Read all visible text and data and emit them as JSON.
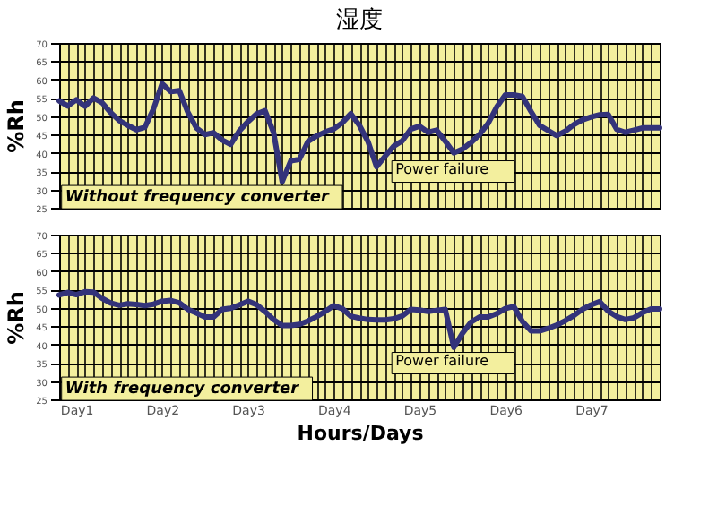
{
  "chart_data": [
    {
      "type": "line",
      "title": "湿度",
      "ylabel": "%Rh",
      "tick_labels": "y",
      "grid": true,
      "line_style": "solid",
      "marker": "none",
      "categories": [
        null,
        null,
        null,
        null,
        null,
        null,
        null,
        null,
        null,
        null,
        null,
        null,
        null,
        null,
        null,
        null,
        null,
        null,
        null,
        null,
        null,
        null,
        null,
        null,
        null,
        null,
        null,
        null,
        null,
        null,
        null,
        null,
        null,
        null,
        null,
        null,
        null,
        null,
        null,
        null,
        null,
        null,
        null,
        null,
        null,
        null,
        null,
        null,
        null,
        null,
        null,
        null,
        null,
        null,
        null,
        null,
        null,
        null,
        null,
        null,
        null,
        null,
        null,
        null,
        null,
        null,
        null,
        null,
        null,
        null,
        null
      ],
      "ylim": [
        25,
        70
      ],
      "yticks": [
        25,
        30,
        35,
        40,
        45,
        50,
        55,
        60,
        65,
        70
      ],
      "annotations": [
        "Without frequency converter",
        "Power failure"
      ],
      "series": [
        {
          "color": "#33337a",
          "values": [
            54.2,
            52.8,
            54.5,
            52.7,
            55.0,
            53.7,
            51.0,
            48.8,
            47.5,
            46.3,
            47.0,
            52.0,
            58.9,
            56.7,
            57.0,
            51.1,
            46.8,
            45.0,
            45.5,
            43.5,
            42.3,
            46.0,
            48.5,
            50.6,
            51.5,
            45.5,
            32.1,
            37.8,
            38.2,
            43.1,
            44.6,
            45.7,
            46.5,
            48.2,
            50.7,
            47.5,
            43.1,
            36.2,
            39.1,
            41.8,
            43.3,
            46.5,
            47.3,
            45.6,
            46.2,
            43.2,
            40.0,
            41.0,
            42.8,
            45.0,
            48.0,
            52.5,
            55.8,
            55.8,
            55.4,
            51.3,
            47.5,
            46.1,
            44.7,
            45.9,
            47.7,
            49.0,
            49.8,
            50.4,
            50.5,
            46.4,
            45.6,
            46.2,
            46.8,
            46.8,
            46.8
          ]
        }
      ]
    },
    {
      "type": "line",
      "ylabel": "%Rh",
      "xlabel": "Hours/Days",
      "grid": true,
      "line_style": "solid",
      "marker": "none",
      "categories": [
        null,
        null,
        "Day1",
        null,
        null,
        null,
        null,
        null,
        null,
        null,
        null,
        null,
        "Day2",
        null,
        null,
        null,
        null,
        null,
        null,
        null,
        null,
        null,
        "Day3",
        null,
        null,
        null,
        null,
        null,
        null,
        null,
        null,
        null,
        "Day4",
        null,
        null,
        null,
        null,
        null,
        null,
        null,
        null,
        null,
        "Day5",
        null,
        null,
        null,
        null,
        null,
        null,
        null,
        null,
        null,
        "Day6",
        null,
        null,
        null,
        null,
        null,
        null,
        null,
        null,
        null,
        "Day7",
        null,
        null,
        null,
        null,
        null,
        null,
        null,
        null
      ],
      "ylim": [
        25,
        70
      ],
      "yticks": [
        25,
        30,
        35,
        40,
        45,
        50,
        55,
        60,
        65,
        70
      ],
      "annotations": [
        "With frequency converter",
        "Power failure"
      ],
      "series": [
        {
          "color": "#33337a",
          "values": [
            53.5,
            54.2,
            53.6,
            54.4,
            54.3,
            52.6,
            51.3,
            50.7,
            51.1,
            50.9,
            50.6,
            51.0,
            51.8,
            52.0,
            51.4,
            49.6,
            48.6,
            47.5,
            47.5,
            49.6,
            49.9,
            50.8,
            51.8,
            50.9,
            49.0,
            46.8,
            45.2,
            45.2,
            45.5,
            46.4,
            47.6,
            49.0,
            50.6,
            49.8,
            47.7,
            47.2,
            46.8,
            46.7,
            46.7,
            47.0,
            47.8,
            49.6,
            49.4,
            49.0,
            49.3,
            49.6,
            39.2,
            43.0,
            46.1,
            47.5,
            47.5,
            48.4,
            49.8,
            50.4,
            46.3,
            43.7,
            43.7,
            44.4,
            45.3,
            46.5,
            47.9,
            49.6,
            50.8,
            51.7,
            49.1,
            47.6,
            46.8,
            47.3,
            48.7,
            49.7,
            49.7
          ]
        }
      ]
    }
  ]
}
